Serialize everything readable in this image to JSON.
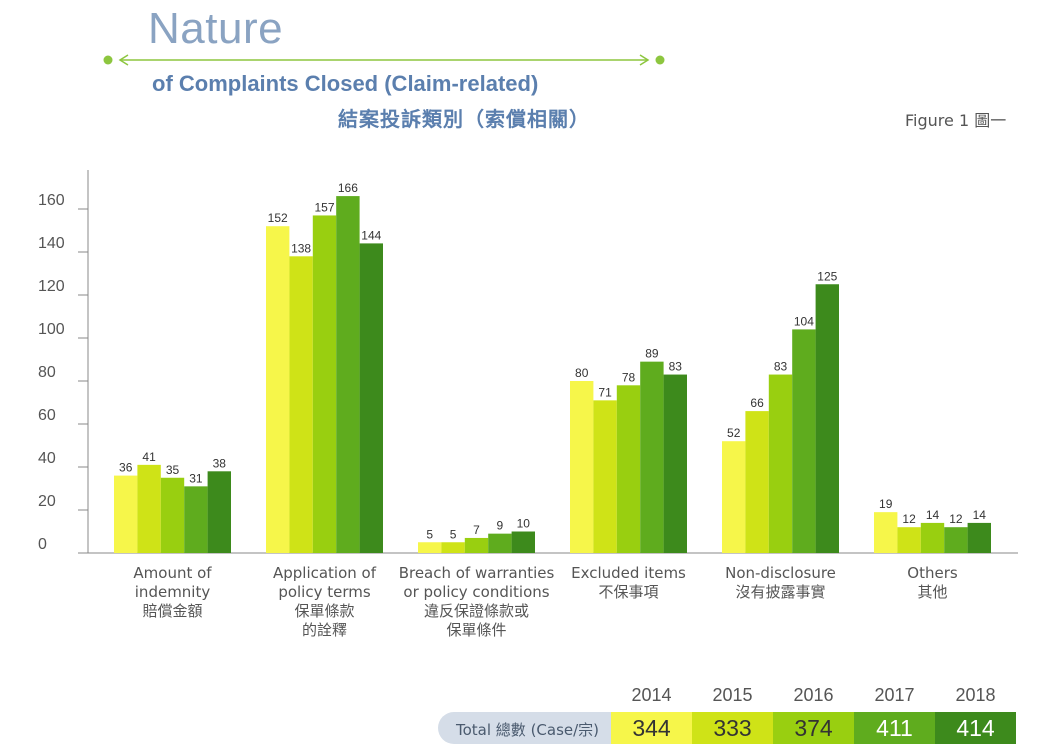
{
  "header": {
    "title_big": "Nature",
    "title_sub": "of Complaints Closed (Claim-related)",
    "title_zh": "結案投訴類別（索償相關）",
    "figure_label": "Figure 1  圖一"
  },
  "colors": {
    "series": [
      "#f6f64a",
      "#cfe317",
      "#99cf10",
      "#5fac1e",
      "#3d8a1c"
    ],
    "header_text": "#5b7fae",
    "arrow": "#8dc63f"
  },
  "chart_data": {
    "type": "bar",
    "ylim": [
      0,
      170
    ],
    "yticks": [
      0,
      20,
      40,
      60,
      80,
      100,
      120,
      140,
      160
    ],
    "categories": [
      [
        "Amount of",
        "indemnity",
        "賠償金額"
      ],
      [
        "Application of",
        "policy terms",
        "保單條款",
        "的詮釋"
      ],
      [
        "Breach of warranties",
        "or policy conditions",
        "違反保證條款或",
        "保單條件"
      ],
      [
        "Excluded items",
        "不保事項"
      ],
      [
        "Non-disclosure",
        "沒有披露事實"
      ],
      [
        "Others",
        "其他"
      ]
    ],
    "series": [
      {
        "name": "2014",
        "values": [
          36,
          152,
          5,
          80,
          52,
          19
        ]
      },
      {
        "name": "2015",
        "values": [
          41,
          138,
          5,
          71,
          66,
          12
        ]
      },
      {
        "name": "2016",
        "values": [
          35,
          157,
          7,
          78,
          83,
          14
        ]
      },
      {
        "name": "2017",
        "values": [
          31,
          166,
          9,
          89,
          104,
          12
        ]
      },
      {
        "name": "2018",
        "values": [
          38,
          144,
          10,
          83,
          125,
          14
        ]
      }
    ],
    "grid": false,
    "legend": "bottom table"
  },
  "totals": {
    "label": "Total 總數 (Case/宗)",
    "values": [
      "344",
      "333",
      "374",
      "411",
      "414"
    ]
  }
}
